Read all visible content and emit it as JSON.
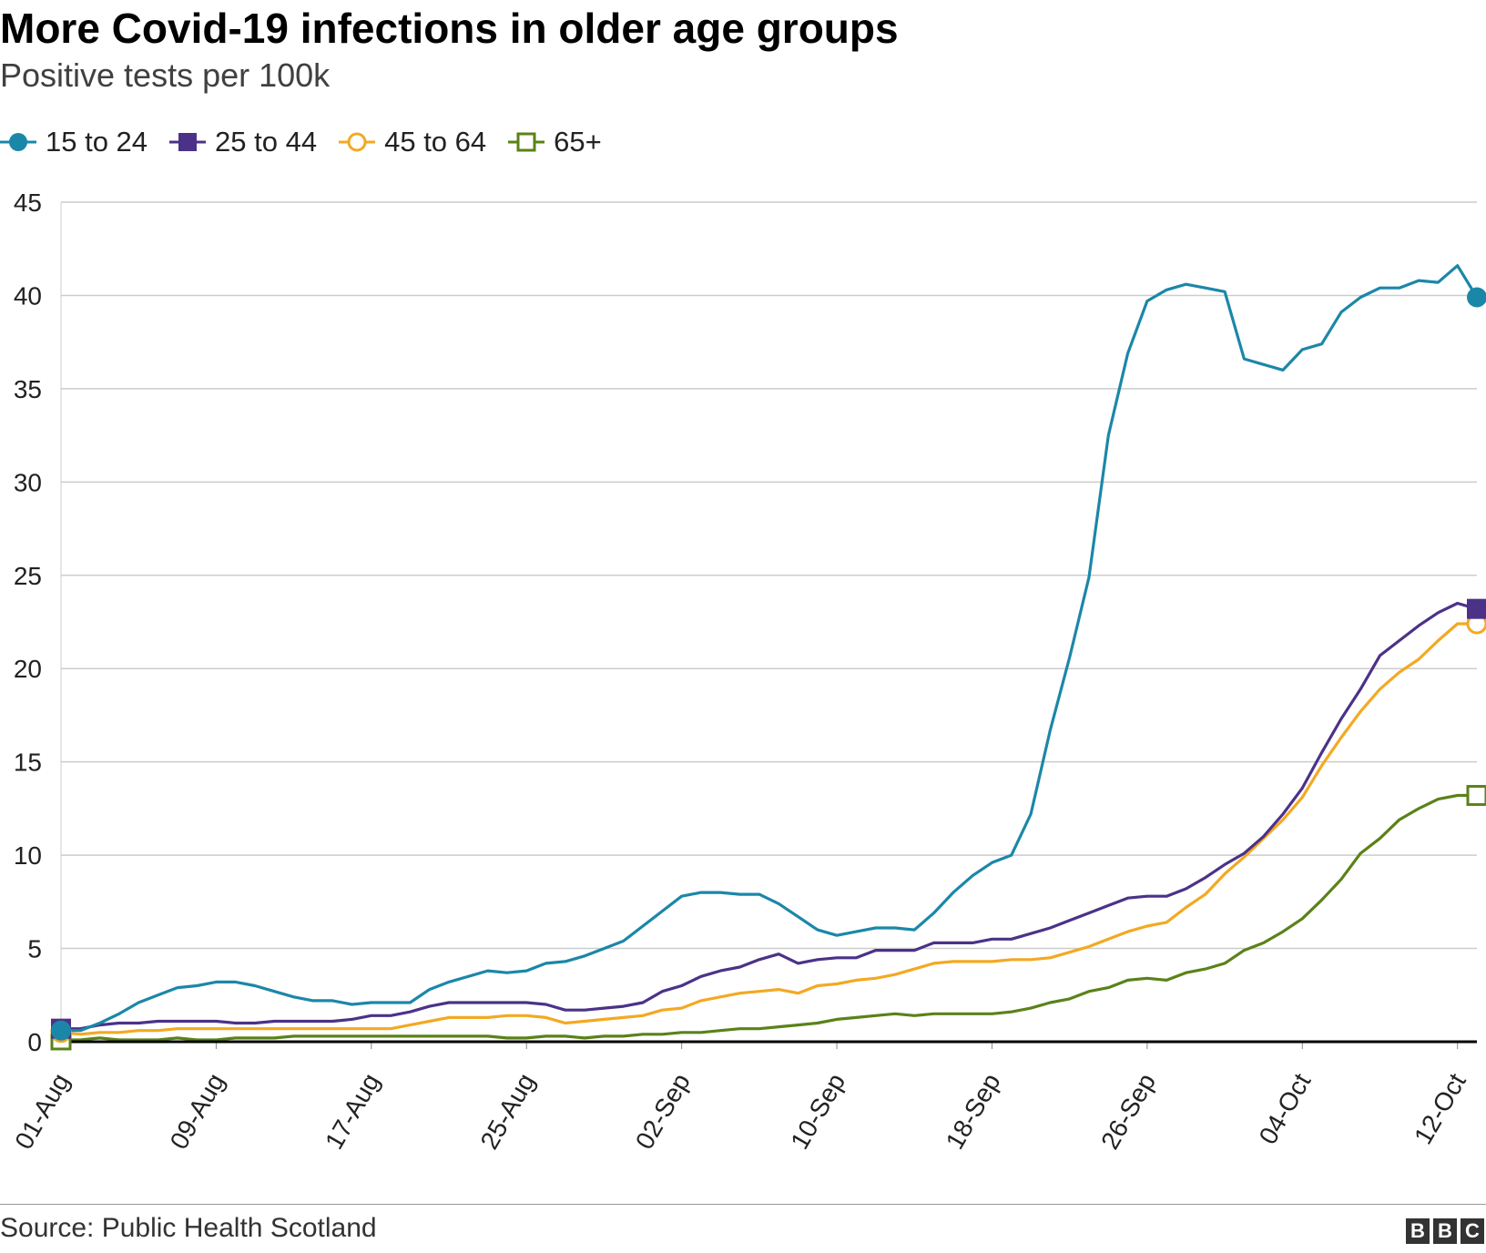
{
  "header": {
    "title": "More Covid-19 infections in older age groups",
    "subtitle": "Positive tests per 100k"
  },
  "footer": {
    "source": "Source: Public Health Scotland",
    "logo_letters": [
      "B",
      "B",
      "C"
    ]
  },
  "chart_data": {
    "type": "line",
    "title": "More Covid-19 infections in older age groups",
    "subtitle": "Positive tests per 100k",
    "xlabel": "",
    "ylabel": "",
    "ylim": [
      0,
      45
    ],
    "yticks": [
      0,
      5,
      10,
      15,
      20,
      25,
      30,
      35,
      40,
      45
    ],
    "x_ticks": [
      {
        "label": "01-Aug",
        "day": 0
      },
      {
        "label": "09-Aug",
        "day": 8
      },
      {
        "label": "17-Aug",
        "day": 16
      },
      {
        "label": "25-Aug",
        "day": 24
      },
      {
        "label": "02-Sep",
        "day": 32
      },
      {
        "label": "10-Sep",
        "day": 40
      },
      {
        "label": "18-Sep",
        "day": 48
      },
      {
        "label": "26-Sep",
        "day": 56
      },
      {
        "label": "04-Oct",
        "day": 64
      },
      {
        "label": "12-Oct",
        "day": 72
      }
    ],
    "x_start": "01-Aug",
    "x_end": "12-Oct",
    "grid": true,
    "legend_position": "top-left",
    "series": [
      {
        "name": "15 to 24",
        "color": "#1b87a8",
        "marker": "filled-circle",
        "values": [
          0.6,
          0.6,
          1.0,
          1.5,
          2.1,
          2.5,
          2.9,
          3.0,
          3.2,
          3.2,
          3.0,
          2.7,
          2.4,
          2.2,
          2.2,
          2.0,
          2.1,
          2.1,
          2.1,
          2.8,
          3.2,
          3.5,
          3.8,
          3.7,
          3.8,
          4.2,
          4.3,
          4.6,
          5.0,
          5.4,
          6.2,
          7.0,
          7.8,
          8.0,
          8.0,
          7.9,
          7.9,
          7.4,
          6.7,
          6.0,
          5.7,
          5.9,
          6.1,
          6.1,
          6.0,
          6.9,
          8.0,
          8.9,
          9.6,
          10.0,
          12.2,
          16.7,
          20.6,
          24.9,
          32.5,
          36.9,
          39.7,
          40.3,
          40.6,
          40.4,
          40.2,
          36.6,
          36.3,
          36.0,
          37.1,
          37.4,
          39.1,
          39.9,
          40.4,
          40.4,
          40.8,
          40.7,
          41.6,
          39.9
        ]
      },
      {
        "name": "25 to 44",
        "color": "#4b3288",
        "marker": "filled-square",
        "values": [
          0.7,
          0.7,
          0.9,
          1.0,
          1.0,
          1.1,
          1.1,
          1.1,
          1.1,
          1.0,
          1.0,
          1.1,
          1.1,
          1.1,
          1.1,
          1.2,
          1.4,
          1.4,
          1.6,
          1.9,
          2.1,
          2.1,
          2.1,
          2.1,
          2.1,
          2.0,
          1.7,
          1.7,
          1.8,
          1.9,
          2.1,
          2.7,
          3.0,
          3.5,
          3.8,
          4.0,
          4.4,
          4.7,
          4.2,
          4.4,
          4.5,
          4.5,
          4.9,
          4.9,
          4.9,
          5.3,
          5.3,
          5.3,
          5.5,
          5.5,
          5.8,
          6.1,
          6.5,
          6.9,
          7.3,
          7.7,
          7.8,
          7.8,
          8.2,
          8.8,
          9.5,
          10.1,
          11.0,
          12.2,
          13.6,
          15.5,
          17.3,
          18.9,
          20.7,
          21.5,
          22.3,
          23.0,
          23.5,
          23.2
        ]
      },
      {
        "name": "45 to 64",
        "color": "#f3a922",
        "marker": "hollow-circle",
        "values": [
          0.5,
          0.4,
          0.5,
          0.5,
          0.6,
          0.6,
          0.7,
          0.7,
          0.7,
          0.7,
          0.7,
          0.7,
          0.7,
          0.7,
          0.7,
          0.7,
          0.7,
          0.7,
          0.9,
          1.1,
          1.3,
          1.3,
          1.3,
          1.4,
          1.4,
          1.3,
          1.0,
          1.1,
          1.2,
          1.3,
          1.4,
          1.7,
          1.8,
          2.2,
          2.4,
          2.6,
          2.7,
          2.8,
          2.6,
          3.0,
          3.1,
          3.3,
          3.4,
          3.6,
          3.9,
          4.2,
          4.3,
          4.3,
          4.3,
          4.4,
          4.4,
          4.5,
          4.8,
          5.1,
          5.5,
          5.9,
          6.2,
          6.4,
          7.2,
          7.9,
          9.0,
          9.9,
          10.9,
          11.9,
          13.1,
          14.8,
          16.3,
          17.7,
          18.9,
          19.8,
          20.5,
          21.5,
          22.4,
          22.4
        ]
      },
      {
        "name": "65+",
        "color": "#5a8219",
        "marker": "hollow-square",
        "values": [
          0.1,
          0.1,
          0.2,
          0.1,
          0.1,
          0.1,
          0.2,
          0.1,
          0.1,
          0.2,
          0.2,
          0.2,
          0.3,
          0.3,
          0.3,
          0.3,
          0.3,
          0.3,
          0.3,
          0.3,
          0.3,
          0.3,
          0.3,
          0.2,
          0.2,
          0.3,
          0.3,
          0.2,
          0.3,
          0.3,
          0.4,
          0.4,
          0.5,
          0.5,
          0.6,
          0.7,
          0.7,
          0.8,
          0.9,
          1.0,
          1.2,
          1.3,
          1.4,
          1.5,
          1.4,
          1.5,
          1.5,
          1.5,
          1.5,
          1.6,
          1.8,
          2.1,
          2.3,
          2.7,
          2.9,
          3.3,
          3.4,
          3.3,
          3.7,
          3.9,
          4.2,
          4.9,
          5.3,
          5.9,
          6.6,
          7.6,
          8.7,
          10.1,
          10.9,
          11.9,
          12.5,
          13.0,
          13.2,
          13.2
        ]
      }
    ]
  }
}
